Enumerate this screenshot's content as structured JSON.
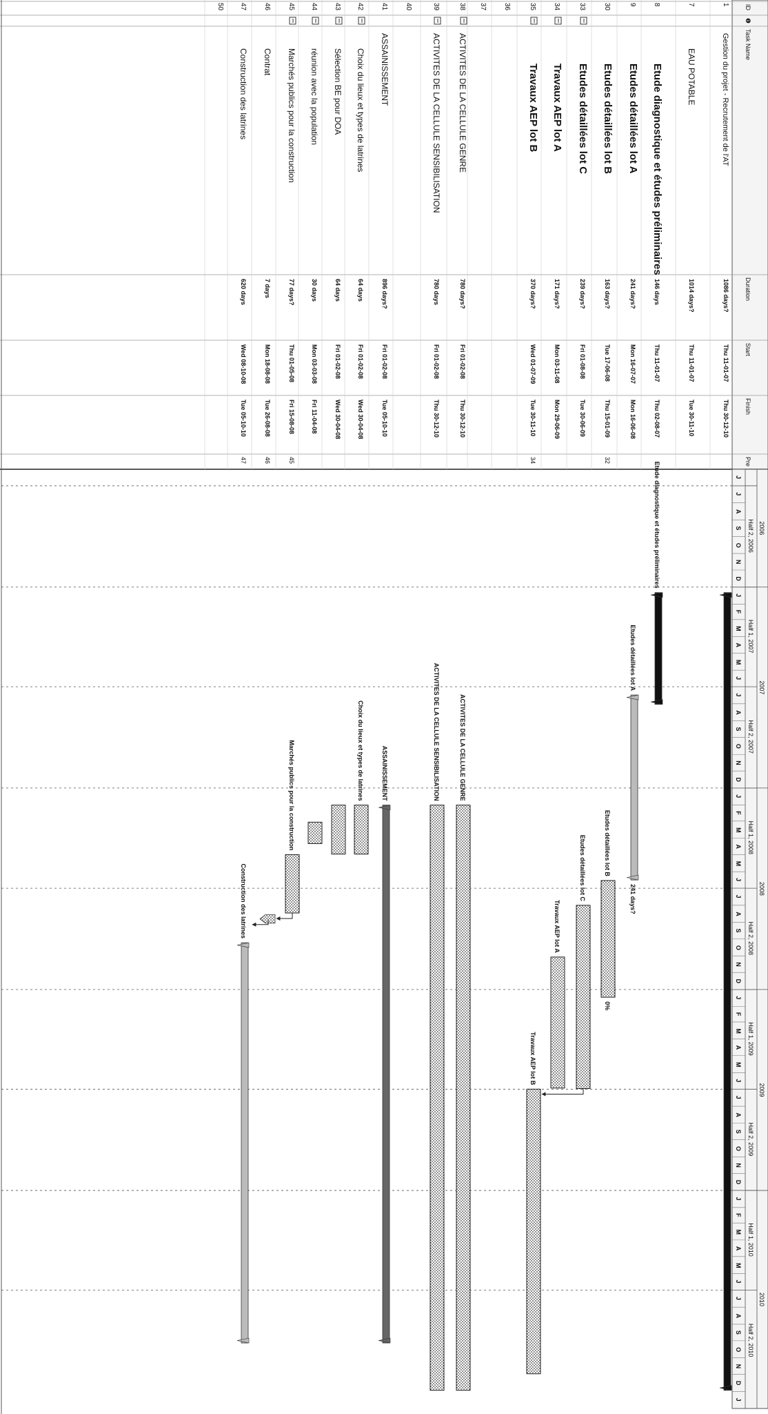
{
  "headers": {
    "id": "ID",
    "info": "❶",
    "task": "Task Name",
    "duration": "Duration",
    "start": "Start",
    "finish": "Finish",
    "pred": "Pre"
  },
  "timescale": {
    "years": [
      "2006",
      "2007",
      "2008",
      "2009",
      "2010"
    ],
    "halves": [
      "Half 2, 2006",
      "Half 1, 2007",
      "Half 2, 2007",
      "Half 1, 2008",
      "Half 2, 2008",
      "Half 1, 2009",
      "Half 2, 2009",
      "Half 1, 2010",
      "Half 2, 2010"
    ],
    "months": [
      "J",
      "J",
      "A",
      "S",
      "O",
      "N",
      "D",
      "J",
      "F",
      "M",
      "A",
      "M",
      "J",
      "J",
      "A",
      "S",
      "O",
      "N",
      "D",
      "J",
      "F",
      "M",
      "A",
      "M",
      "J",
      "J",
      "A",
      "S",
      "O",
      "N",
      "D",
      "J",
      "F",
      "M",
      "A",
      "M",
      "J",
      "J",
      "A",
      "S",
      "O",
      "N",
      "D",
      "J",
      "F",
      "M",
      "A",
      "M",
      "J",
      "J",
      "A",
      "S",
      "O",
      "N",
      "D",
      "J"
    ]
  },
  "tasks": [
    {
      "id": "1",
      "name": "Gestion du projet - Recrutement de l'AT",
      "duration": "1086 days?",
      "start": "Thu 11-01-07",
      "finish": "Thu 30-12-10",
      "pred": "",
      "type": "summary",
      "size": "sm",
      "bold": false,
      "indent": 0,
      "label": "",
      "s": "2007-01-11",
      "f": "2010-12-30",
      "note": "",
      "icon": false
    },
    {
      "id": "7",
      "name": "EAU POTABLE",
      "duration": "1014 days?",
      "start": "Thu 11-01-07",
      "finish": "Tue 30-11-10",
      "pred": "",
      "type": "none",
      "size": "md",
      "bold": false,
      "indent": 1,
      "label": "",
      "s": "2007-01-11",
      "f": "2010-11-30",
      "note": "",
      "icon": false
    },
    {
      "id": "8",
      "name": "Etude diagnostique et études préliminaires",
      "duration": "146 days",
      "start": "Thu 11-01-07",
      "finish": "Thu 02-08-07",
      "pred": "",
      "type": "summary",
      "size": "lg",
      "bold": true,
      "indent": 2,
      "label": "Etude diagnostique et études préliminaires",
      "s": "2007-01-11",
      "f": "2007-08-02",
      "note": "",
      "icon": false
    },
    {
      "id": "9",
      "name": "Etudes détaillées lot A",
      "duration": "241 days?",
      "start": "Mon 16-07-07",
      "finish": "Mon 16-06-08",
      "pred": "",
      "type": "summary2",
      "size": "lg",
      "bold": true,
      "indent": 2,
      "label": "Etudes détaillées lot A",
      "s": "2007-07-16",
      "f": "2008-06-16",
      "note": "241 days?",
      "icon": false
    },
    {
      "id": "30",
      "name": "Etudes détaillées lot B",
      "duration": "163 days?",
      "start": "Tue 17-06-08",
      "finish": "Thu 15-01-09",
      "pred": "32",
      "type": "bar",
      "size": "lg",
      "bold": true,
      "indent": 2,
      "label": "Etudes détaillées lot B",
      "s": "2008-06-17",
      "f": "2009-01-15",
      "note": "0%",
      "icon": false
    },
    {
      "id": "33",
      "name": "Etudes détaillées lot C",
      "duration": "239 days?",
      "start": "Fri 01-08-08",
      "finish": "Tue 30-06-09",
      "pred": "",
      "type": "bar",
      "size": "lg",
      "bold": true,
      "indent": 2,
      "label": "Etudes détaillées lot C",
      "s": "2008-08-01",
      "f": "2009-06-30",
      "note": "",
      "icon": true
    },
    {
      "id": "34",
      "name": "Travaux AEP lot A",
      "duration": "171 days?",
      "start": "Mon 03-11-08",
      "finish": "Mon 29-06-09",
      "pred": "",
      "type": "bar",
      "size": "lg",
      "bold": true,
      "indent": 2,
      "label": "Travaux AEP lot A",
      "s": "2008-11-03",
      "f": "2009-06-29",
      "note": "",
      "icon": true
    },
    {
      "id": "35",
      "name": "Travaux AEP lot B",
      "duration": "370 days?",
      "start": "Wed 01-07-09",
      "finish": "Tue 30-11-10",
      "pred": "34",
      "type": "bar",
      "size": "lg",
      "bold": true,
      "indent": 2,
      "label": "Travaux AEP lot B",
      "s": "2009-07-01",
      "f": "2010-11-30",
      "note": "",
      "icon": true
    },
    {
      "id": "36",
      "name": "",
      "duration": "",
      "start": "",
      "finish": "",
      "pred": "",
      "type": "none",
      "size": "sm",
      "bold": false,
      "indent": 0,
      "label": "",
      "s": "",
      "f": "",
      "note": "",
      "icon": false
    },
    {
      "id": "37",
      "name": "",
      "duration": "",
      "start": "",
      "finish": "",
      "pred": "",
      "type": "none",
      "size": "sm",
      "bold": false,
      "indent": 0,
      "label": "",
      "s": "",
      "f": "",
      "note": "",
      "icon": false
    },
    {
      "id": "38",
      "name": "ACTIVITES DE LA CELLULE GENRE",
      "duration": "780 days?",
      "start": "Fri 01-02-08",
      "finish": "Thu 30-12-10",
      "pred": "",
      "type": "bar",
      "size": "md",
      "bold": false,
      "indent": 0,
      "label": "ACTIVITES DE LA CELLULE GENRE",
      "s": "2008-02-01",
      "f": "2010-12-30",
      "note": "",
      "icon": true
    },
    {
      "id": "39",
      "name": "ACTIVITES DE LA CELLULE SENSIBILISATION",
      "duration": "780 days",
      "start": "Fri 01-02-08",
      "finish": "Thu 30-12-10",
      "pred": "",
      "type": "bar",
      "size": "md",
      "bold": false,
      "indent": 0,
      "label": "ACTIVITES DE LA CELLULE SENSIBILISATION",
      "s": "2008-02-01",
      "f": "2010-12-30",
      "note": "",
      "icon": true
    },
    {
      "id": "40",
      "name": "",
      "duration": "",
      "start": "",
      "finish": "",
      "pred": "",
      "type": "none",
      "size": "sm",
      "bold": false,
      "indent": 0,
      "label": "",
      "s": "",
      "f": "",
      "note": "",
      "icon": false
    },
    {
      "id": "41",
      "name": "ASSAINISSEMENT",
      "duration": "896 days?",
      "start": "Fri 01-02-08",
      "finish": "Tue 05-10-10",
      "pred": "",
      "type": "summary3",
      "size": "md",
      "bold": false,
      "indent": 0,
      "label": "ASSAINISSEMENT",
      "s": "2008-02-01",
      "f": "2010-10-05",
      "note": "",
      "icon": false
    },
    {
      "id": "42",
      "name": "Choix du lieux et types de latrines",
      "duration": "64 days",
      "start": "Fri 01-02-08",
      "finish": "Wed 30-04-08",
      "pred": "",
      "type": "bar",
      "size": "md",
      "bold": false,
      "indent": 1,
      "label": "Choix du lieux et types de latrines",
      "s": "2008-02-01",
      "f": "2008-04-30",
      "note": "",
      "icon": true
    },
    {
      "id": "43",
      "name": "Sélection BE pour DOA",
      "duration": "64 days",
      "start": "Fri 01-02-08",
      "finish": "Wed 30-04-08",
      "pred": "",
      "type": "bar",
      "size": "md",
      "bold": false,
      "indent": 1,
      "label": "",
      "s": "2008-02-01",
      "f": "2008-04-30",
      "note": "",
      "icon": true
    },
    {
      "id": "44",
      "name": "réunion avec la population",
      "duration": "30 days",
      "start": "Mon 03-03-08",
      "finish": "Fri 11-04-08",
      "pred": "",
      "type": "bar",
      "size": "md",
      "bold": false,
      "indent": 1,
      "label": "",
      "s": "2008-03-03",
      "f": "2008-04-11",
      "note": "",
      "icon": true
    },
    {
      "id": "45",
      "name": "Marchés publics pour la construction",
      "duration": "77 days?",
      "start": "Thu 01-05-08",
      "finish": "Fri 15-08-08",
      "pred": "45",
      "type": "bar",
      "size": "md",
      "bold": false,
      "indent": 1,
      "label": "Marchés publics pour la construction",
      "s": "2008-05-01",
      "f": "2008-08-15",
      "note": "",
      "icon": true
    },
    {
      "id": "46",
      "name": "Contrat",
      "duration": "7 days",
      "start": "Mon 18-08-08",
      "finish": "Tue 26-08-08",
      "pred": "46",
      "type": "milestone",
      "size": "md",
      "bold": false,
      "indent": 1,
      "label": "",
      "s": "2008-08-18",
      "f": "2008-08-26",
      "note": "",
      "icon": false
    },
    {
      "id": "47",
      "name": "Construction des latrines",
      "duration": "620 days",
      "start": "Wed 08-10-08",
      "finish": "Tue 05-10-10",
      "pred": "47",
      "type": "summary4",
      "size": "md",
      "bold": false,
      "indent": 1,
      "label": "Construction des latrines",
      "s": "2008-10-08",
      "f": "2010-10-05",
      "note": "",
      "icon": false
    },
    {
      "id": "50",
      "name": "",
      "duration": "",
      "start": "",
      "finish": "",
      "pred": "",
      "type": "none",
      "size": "sm",
      "bold": false,
      "indent": 0,
      "label": "",
      "s": "",
      "f": "",
      "note": "",
      "icon": false
    }
  ],
  "links": [
    {
      "from": "33",
      "to": "35"
    },
    {
      "from": "45",
      "to": "46"
    },
    {
      "from": "46",
      "to": "47"
    }
  ]
}
